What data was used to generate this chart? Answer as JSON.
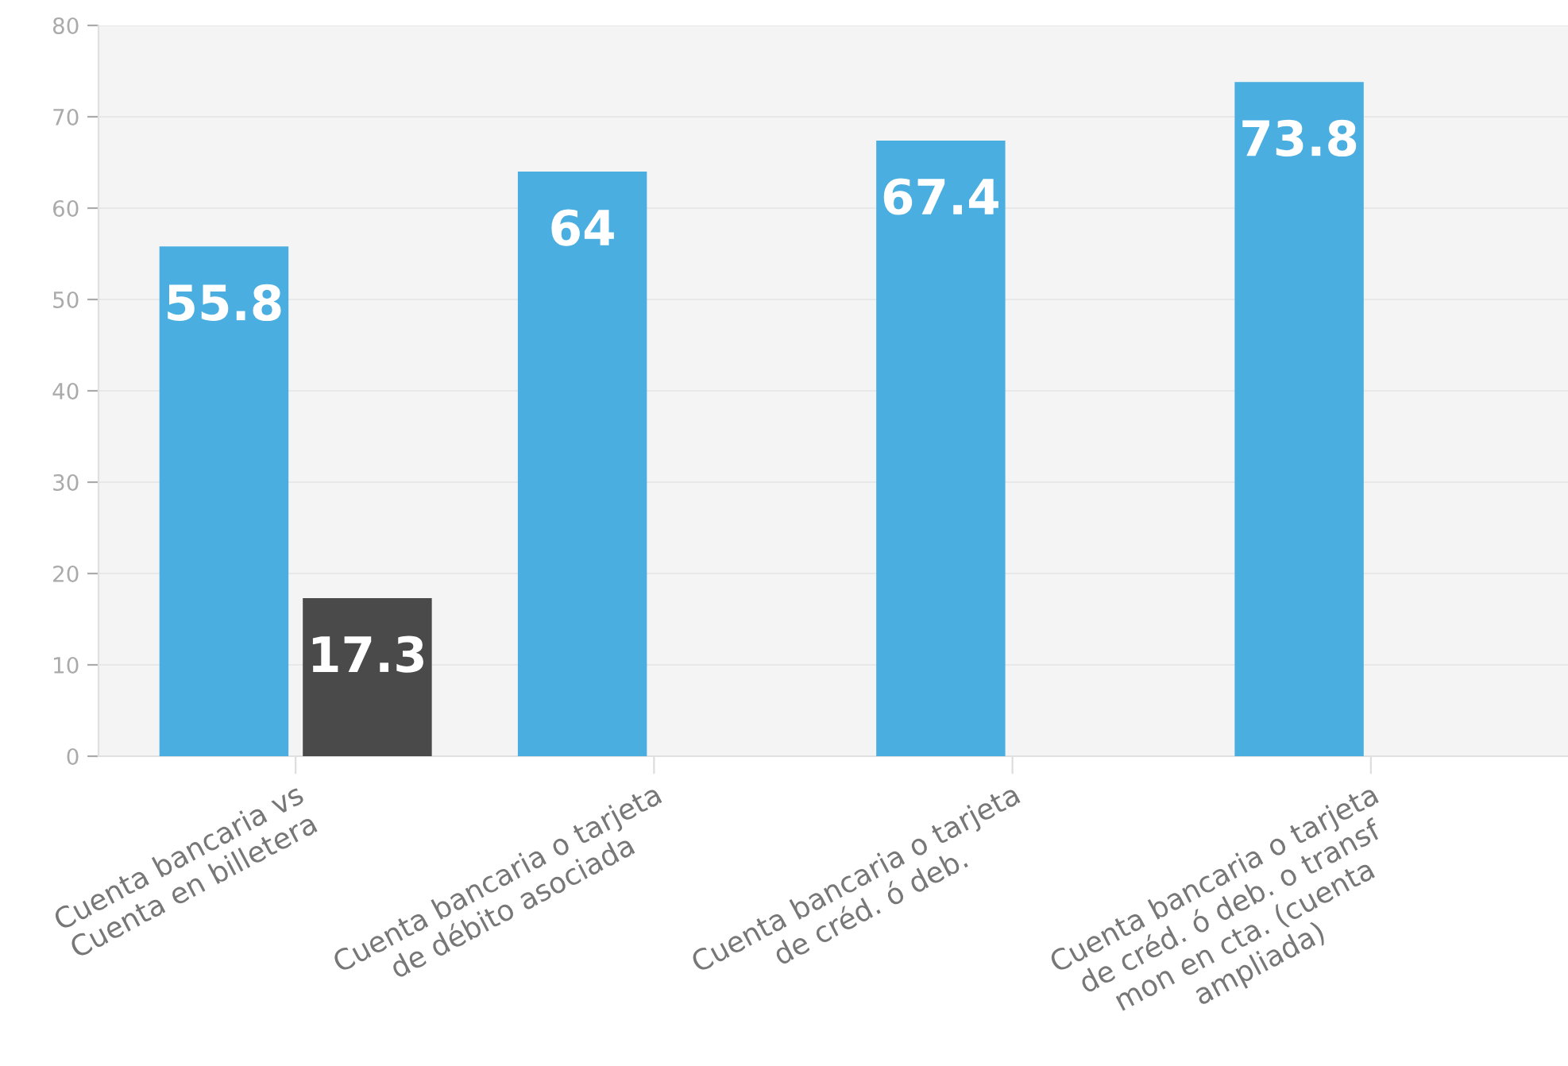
{
  "chart_data": {
    "type": "bar",
    "categories": [
      "Cuenta bancaria vs\nCuenta en billetera",
      "Cuenta bancaria o tarjeta\nde débito asociada",
      "Cuenta bancaria o tarjeta\nde créd. ó deb.",
      "Cuenta bancaria o tarjeta\nde créd. ó deb. o transf\nmon en cta. (cuenta\nampliada)"
    ],
    "series": [
      {
        "color": "#4aaee0",
        "values": [
          55.8,
          64,
          67.4,
          73.8
        ]
      },
      {
        "color": "#4a4a4a",
        "values": [
          17.3,
          null,
          null,
          null
        ]
      }
    ],
    "ylim": [
      0,
      80
    ],
    "yticks": [
      0,
      10,
      20,
      30,
      40,
      50,
      60,
      70,
      80
    ],
    "grid": "y",
    "data_labels": true,
    "legend": false
  }
}
